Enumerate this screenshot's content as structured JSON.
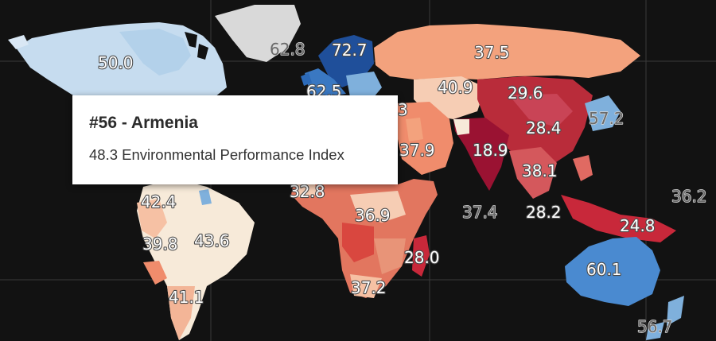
{
  "map": {
    "metric": "Environmental Performance Index",
    "colors": {
      "background": "#121212",
      "grid": "#3a3a3a",
      "high": "#2c6ab8",
      "mid": "#f7ead9",
      "low": "#c8283a",
      "lowest": "#9a1232",
      "no_data": "#d9d9d9"
    },
    "labels": [
      {
        "region": "north-america",
        "value": "50.0"
      },
      {
        "region": "greenland",
        "value": "62.8"
      },
      {
        "region": "scandinavia",
        "value": "72.7"
      },
      {
        "region": "western-europe",
        "value": "62.5"
      },
      {
        "region": "russia",
        "value": "37.5"
      },
      {
        "region": "central-asia",
        "value": "40.9"
      },
      {
        "region": "china",
        "value": "29.6"
      },
      {
        "region": "east-china",
        "value": "28.4"
      },
      {
        "region": "japan",
        "value": "57.2"
      },
      {
        "region": "middle-east",
        "value": "37.9"
      },
      {
        "region": "india",
        "value": "18.9"
      },
      {
        "region": "southeast-asia",
        "value": "38.1"
      },
      {
        "region": "indian-ocean",
        "value": "37.4"
      },
      {
        "region": "malaysia",
        "value": "28.2"
      },
      {
        "region": "indonesia",
        "value": "24.8"
      },
      {
        "region": "pacific",
        "value": "36.2"
      },
      {
        "region": "west-africa",
        "value": "32.8"
      },
      {
        "region": "central-africa",
        "value": "36.9"
      },
      {
        "region": "madagascar",
        "value": "28.0"
      },
      {
        "region": "southern-africa",
        "value": "37.2"
      },
      {
        "region": "australia",
        "value": "60.1"
      },
      {
        "region": "new-zealand",
        "value": "56.7"
      },
      {
        "region": "colombia",
        "value": "42.4"
      },
      {
        "region": "peru",
        "value": "39.8"
      },
      {
        "region": "brazil",
        "value": "43.6"
      },
      {
        "region": "argentina",
        "value": "41.1"
      }
    ],
    "partial_label": "3"
  },
  "tooltip": {
    "title": "#56 - Armenia",
    "body": "48.3 Environmental Performance Index"
  }
}
